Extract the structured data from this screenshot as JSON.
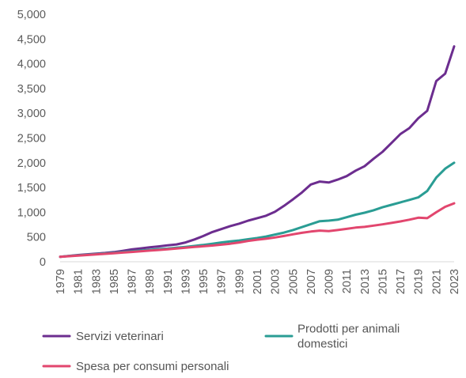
{
  "chart_data": {
    "type": "line",
    "title": "",
    "xlabel": "",
    "ylabel": "",
    "ylim": [
      0,
      5000
    ],
    "yticks": [
      "0",
      "500",
      "1,000",
      "1,500",
      "2,000",
      "2,500",
      "3,000",
      "3,500",
      "4,000",
      "4,500",
      "5,000"
    ],
    "ytick_values": [
      0,
      500,
      1000,
      1500,
      2000,
      2500,
      3000,
      3500,
      4000,
      4500,
      5000
    ],
    "xlim": [
      1979,
      2023
    ],
    "xticks": [
      "1979",
      "1981",
      "1983",
      "1985",
      "1987",
      "1989",
      "1991",
      "1993",
      "1995",
      "1997",
      "1999",
      "2001",
      "2003",
      "2005",
      "2007",
      "2009",
      "2011",
      "2013",
      "2015",
      "2017",
      "2019",
      "2021",
      "2023"
    ],
    "xtick_values": [
      1979,
      1981,
      1983,
      1985,
      1987,
      1989,
      1991,
      1993,
      1995,
      1997,
      1999,
      2001,
      2003,
      2005,
      2007,
      2009,
      2011,
      2013,
      2015,
      2017,
      2019,
      2021,
      2023
    ],
    "grid": false,
    "legend_position": "bottom",
    "x": [
      1979,
      1980,
      1981,
      1982,
      1983,
      1984,
      1985,
      1986,
      1987,
      1988,
      1989,
      1990,
      1991,
      1992,
      1993,
      1994,
      1995,
      1996,
      1997,
      1998,
      1999,
      2000,
      2001,
      2002,
      2003,
      2004,
      2005,
      2006,
      2007,
      2008,
      2009,
      2010,
      2011,
      2012,
      2013,
      2014,
      2015,
      2016,
      2017,
      2018,
      2019,
      2020,
      2021,
      2022,
      2023
    ],
    "series": [
      {
        "name": "Servizi veterinari",
        "color": "#6c2d8f",
        "values": [
          100,
          118,
          135,
          150,
          165,
          178,
          195,
          220,
          250,
          270,
          290,
          310,
          330,
          350,
          390,
          450,
          520,
          600,
          660,
          720,
          770,
          830,
          880,
          930,
          1010,
          1130,
          1260,
          1400,
          1560,
          1620,
          1600,
          1660,
          1730,
          1840,
          1930,
          2080,
          2220,
          2400,
          2580,
          2700,
          2900,
          3050,
          3650,
          3800,
          4350
        ]
      },
      {
        "name": "Prodotti per animali domestici",
        "color": "#2a9d94",
        "values": [
          100,
          115,
          130,
          142,
          155,
          168,
          180,
          195,
          210,
          225,
          240,
          255,
          265,
          285,
          300,
          320,
          340,
          365,
          390,
          410,
          430,
          455,
          480,
          510,
          550,
          590,
          640,
          700,
          760,
          820,
          830,
          850,
          900,
          950,
          990,
          1040,
          1100,
          1150,
          1200,
          1250,
          1300,
          1430,
          1700,
          1880,
          2000
        ]
      },
      {
        "name": "Spesa per consumi personali",
        "color": "#e2466e",
        "values": [
          100,
          112,
          124,
          135,
          148,
          160,
          172,
          185,
          198,
          212,
          225,
          238,
          252,
          268,
          283,
          298,
          313,
          328,
          345,
          365,
          390,
          420,
          445,
          465,
          490,
          520,
          555,
          585,
          610,
          630,
          620,
          640,
          665,
          690,
          705,
          730,
          755,
          785,
          815,
          850,
          890,
          880,
          1000,
          1110,
          1180
        ]
      }
    ],
    "legend": [
      {
        "label_lines": [
          "Servizi veterinari"
        ],
        "series_index": 0
      },
      {
        "label_lines": [
          "Prodotti per animali",
          "domestici"
        ],
        "series_index": 1
      },
      {
        "label_lines": [
          "Spesa per consumi personali"
        ],
        "series_index": 2
      }
    ]
  }
}
